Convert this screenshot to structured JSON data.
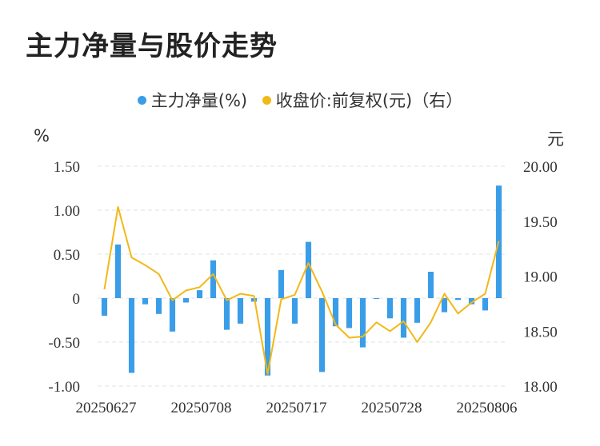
{
  "title": "主力净量与股价走势",
  "legend": {
    "left_label": "主力净量(%)",
    "right_label": "收盘价:前复权(元)（右）"
  },
  "colors": {
    "bar": "#3a9de8",
    "line": "#f2b817",
    "grid": "#e2e2e2"
  },
  "chart_data": {
    "type": "bar+line",
    "title": "主力净量与股价走势",
    "left_axis": {
      "unit": "%",
      "range": [
        -1.0,
        1.5
      ],
      "ticks": [
        "-1.00",
        "-0.50",
        "0",
        "0.50",
        "1.00",
        "1.50"
      ]
    },
    "right_axis": {
      "unit": "元",
      "range": [
        18.0,
        20.0
      ],
      "ticks": [
        "18.00",
        "18.50",
        "19.00",
        "19.50",
        "20.00"
      ]
    },
    "x_tick_labels": [
      "20250627",
      "20250708",
      "20250717",
      "20250728",
      "20250806"
    ],
    "x_tick_index": [
      0,
      7,
      14,
      21,
      28
    ],
    "grid": "horizontal dashed",
    "legend_position": "top-center",
    "series": [
      {
        "name": "主力净量(%)",
        "axis": "left",
        "type": "bar",
        "values": [
          -0.2,
          0.61,
          -0.85,
          -0.07,
          -0.18,
          -0.38,
          -0.05,
          0.09,
          0.43,
          -0.36,
          -0.29,
          -0.04,
          -0.88,
          0.32,
          -0.29,
          0.64,
          -0.84,
          -0.32,
          -0.34,
          -0.56,
          -0.01,
          -0.23,
          -0.45,
          -0.28,
          0.3,
          -0.16,
          -0.02,
          -0.07,
          -0.14,
          1.28
        ]
      },
      {
        "name": "收盘价:前复权(元)（右）",
        "axis": "right",
        "type": "line",
        "values": [
          18.88,
          19.63,
          19.17,
          19.1,
          19.02,
          18.78,
          18.87,
          18.9,
          19.02,
          18.78,
          18.84,
          18.82,
          18.11,
          18.79,
          18.83,
          19.12,
          18.86,
          18.56,
          18.44,
          18.45,
          18.58,
          18.5,
          18.59,
          18.4,
          18.58,
          18.84,
          18.66,
          18.76,
          18.84,
          19.32
        ]
      }
    ]
  }
}
